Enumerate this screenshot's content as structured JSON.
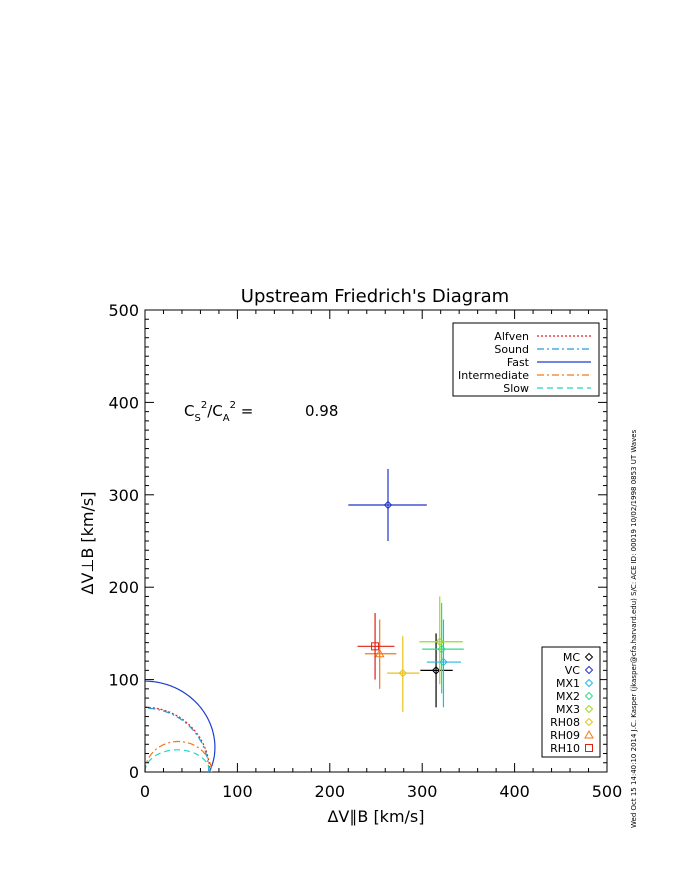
{
  "chart_data": {
    "type": "scatter",
    "title": "Upstream Friedrich's Diagram",
    "xlabel": "ΔV∥B [km/s]",
    "ylabel": "ΔV⊥B [km/s]",
    "xlim": [
      0,
      500
    ],
    "ylim": [
      0,
      500
    ],
    "xticks": [
      "0",
      "100",
      "200",
      "300",
      "400",
      "500"
    ],
    "yticks": [
      "0",
      "100",
      "200",
      "300",
      "400",
      "500"
    ],
    "grid": false,
    "legend_placement": "top-right",
    "annotation": {
      "lhs_base1": "C",
      "lhs_sub1": "S",
      "lhs_sup1": "2",
      "lhs_sep": "/C",
      "lhs_sub2": "A",
      "lhs_sup2": "2",
      "lhs_eq": " =",
      "value": "0.98"
    },
    "side_text": "Wed Oct 15 14:40:10 2014   J.C. Kasper (jkasper@cfa.harvard.edu)   S/C: ACE ID: 00019 10/02/1998  0853 UT Waves",
    "wave_speeds": {
      "v_alfven": 70,
      "v_sound": 69,
      "cs2_over_ca2": 0.98
    },
    "curves": [
      {
        "name": "Alfven",
        "color": "#dd2222",
        "dash": "2,2"
      },
      {
        "name": "Sound",
        "color": "#1f9fd8",
        "dash": "7,3,2,3"
      },
      {
        "name": "Fast",
        "color": "#1a3fd0",
        "dash": ""
      },
      {
        "name": "Intermediate",
        "color": "#f07a1a",
        "dash": "7,3,2,3"
      },
      {
        "name": "Slow",
        "color": "#22d8c8",
        "dash": "6,4"
      }
    ],
    "series": [
      {
        "name": "MC",
        "marker": "diamond",
        "color": "#000000",
        "x": 315,
        "y": 110,
        "xerr": [
          298,
          333
        ],
        "yerr": [
          70,
          150
        ]
      },
      {
        "name": "VC",
        "marker": "diamond",
        "color": "#2233cc",
        "x": 263,
        "y": 289,
        "xerr": [
          220,
          305
        ],
        "yerr": [
          250,
          328
        ]
      },
      {
        "name": "MX1",
        "marker": "diamond",
        "color": "#22b8e8",
        "x": 323,
        "y": 119,
        "xerr": [
          305,
          342
        ],
        "yerr": [
          70,
          165
        ]
      },
      {
        "name": "MX2",
        "marker": "diamond",
        "color": "#33d88a",
        "x": 321,
        "y": 133,
        "xerr": [
          300,
          345
        ],
        "yerr": [
          85,
          183
        ]
      },
      {
        "name": "MX3",
        "marker": "diamond",
        "color": "#99dd22",
        "x": 319,
        "y": 141,
        "xerr": [
          297,
          344
        ],
        "yerr": [
          95,
          190
        ]
      },
      {
        "name": "RH08",
        "marker": "diamond",
        "color": "#e8c21a",
        "x": 279,
        "y": 107,
        "xerr": [
          262,
          297
        ],
        "yerr": [
          65,
          147
        ]
      },
      {
        "name": "RH09",
        "marker": "triangle",
        "color": "#f07a1a",
        "x": 254,
        "y": 128,
        "xerr": [
          238,
          272
        ],
        "yerr": [
          90,
          165
        ]
      },
      {
        "name": "RH10",
        "marker": "square",
        "color": "#e02010",
        "x": 249,
        "y": 136,
        "xerr": [
          230,
          270
        ],
        "yerr": [
          100,
          172
        ]
      }
    ]
  }
}
